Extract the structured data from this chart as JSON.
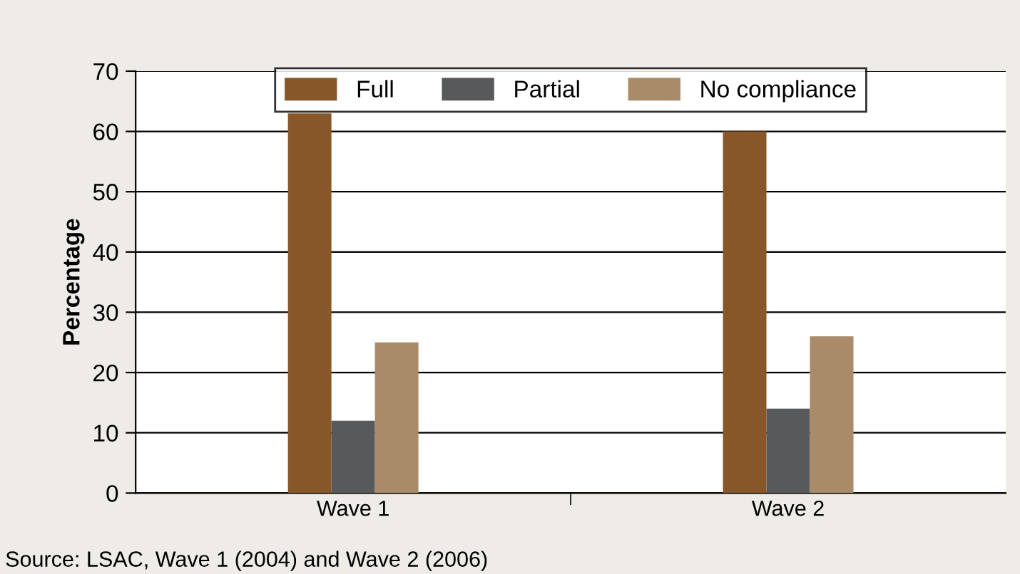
{
  "chart_data": {
    "type": "bar",
    "ylabel": "Percentage",
    "categories": [
      "Wave 1",
      "Wave 2"
    ],
    "series": [
      {
        "name": "Full",
        "color": "#87572a",
        "values": [
          63,
          60
        ]
      },
      {
        "name": "Partial",
        "color": "#58595b",
        "values": [
          12,
          14
        ]
      },
      {
        "name": "No compliance",
        "color": "#a98a69",
        "values": [
          25,
          26
        ]
      }
    ],
    "ylim": [
      0,
      70
    ],
    "yticks": [
      0,
      10,
      20,
      30,
      40,
      50,
      60,
      70
    ],
    "grid": "y",
    "legend": "top",
    "annotations": [
      "Source: LSAC, Wave 1 (2004) and Wave 2 (2006)"
    ]
  }
}
